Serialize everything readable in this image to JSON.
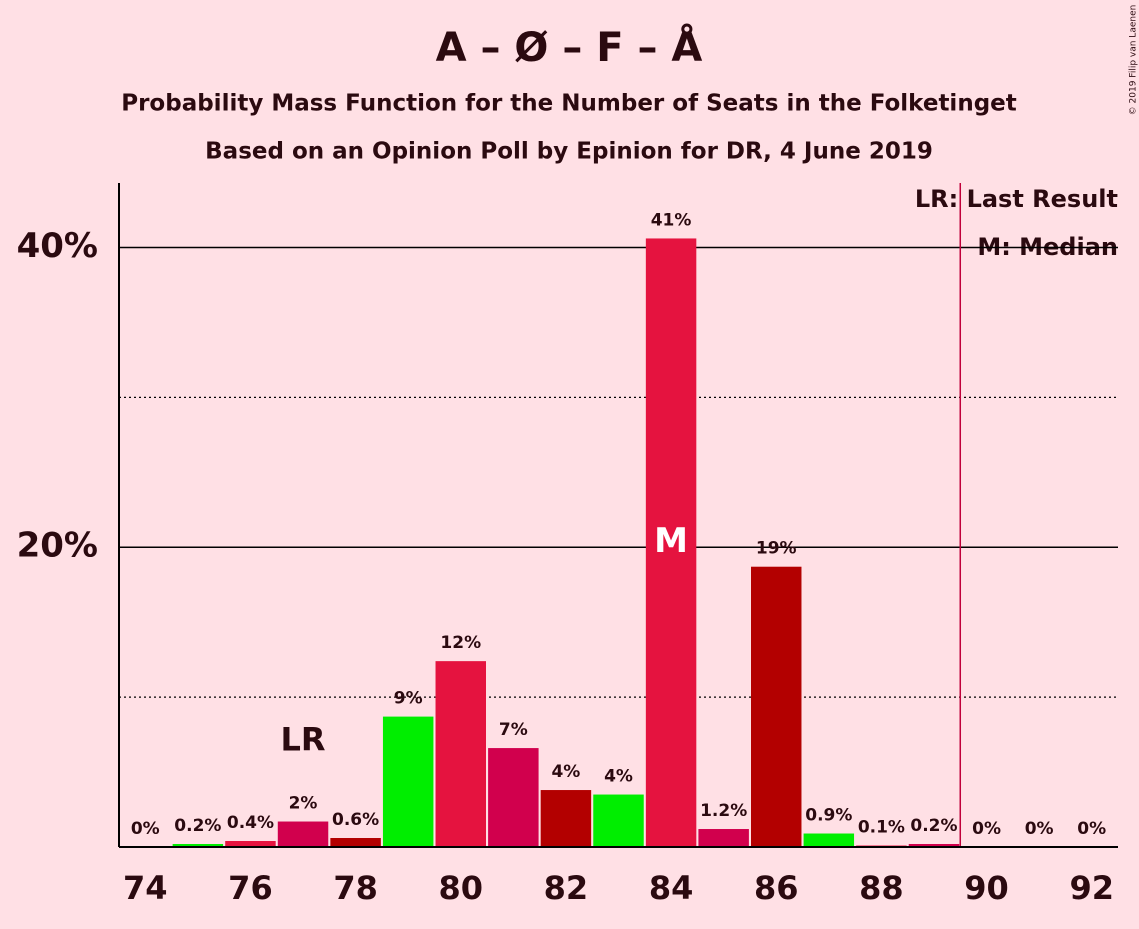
{
  "chart_data": {
    "type": "bar",
    "title": "A – Ø – F – Å",
    "subtitle": "Probability Mass Function for the Number of Seats in the Folketinget",
    "subtitle2": "Based on an Opinion Poll by Epinion for DR, 4 June 2019",
    "x": [
      74,
      75,
      76,
      77,
      78,
      79,
      80,
      81,
      82,
      83,
      84,
      85,
      86,
      87,
      88,
      89,
      90,
      91,
      92
    ],
    "values": [
      0,
      0.2,
      0.4,
      1.7,
      0.6,
      8.7,
      12.4,
      6.6,
      3.8,
      3.5,
      40.6,
      1.2,
      18.7,
      0.9,
      0.1,
      0.2,
      0,
      0,
      0
    ],
    "value_labels": [
      "0%",
      "0.2%",
      "0.4%",
      "2%",
      "0.6%",
      "9%",
      "12%",
      "7%",
      "4%",
      "4%",
      "41%",
      "1.2%",
      "19%",
      "0.9%",
      "0.1%",
      "0.2%",
      "0%",
      "0%",
      "0%"
    ],
    "colors": [
      "#e5133f",
      "#00ee00",
      "#e5133f",
      "#d1004d",
      "#b30000",
      "#00ee00",
      "#e5133f",
      "#d1004d",
      "#b30000",
      "#00ee00",
      "#e5133f",
      "#d1004d",
      "#b30000",
      "#00ee00",
      "#e5133f",
      "#d1004d",
      "#b30000",
      "#00ee00",
      "#e5133f"
    ],
    "xlim": [
      73.5,
      92.5
    ],
    "xticks": [
      74,
      76,
      78,
      80,
      82,
      84,
      86,
      88,
      90,
      92
    ],
    "ylim": [
      0,
      44.3
    ],
    "yticks": [
      {
        "value": 20,
        "label": "20%"
      },
      {
        "value": 40,
        "label": "40%"
      }
    ],
    "minor_yticks": [
      10,
      30
    ],
    "majority_line": 89.5,
    "majority_color": "#c0003a",
    "last_result": 77,
    "last_result_label": "LR",
    "median": 84,
    "median_label": "M",
    "legend": [
      "LR: Last Result",
      "M: Median"
    ],
    "copyright": "© 2019 Filip van Laenen"
  }
}
